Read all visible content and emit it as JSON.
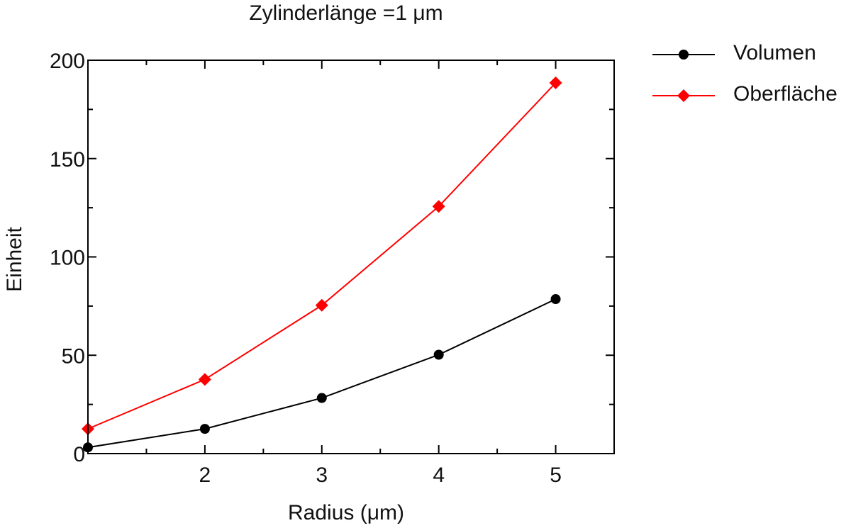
{
  "chart_data": {
    "type": "line",
    "title": "Zylinderlänge =1 μm",
    "xlabel": "Radius (μm)",
    "ylabel": "Einheit",
    "xlim": [
      1,
      5.5
    ],
    "ylim": [
      0,
      200
    ],
    "x_ticks": [
      2,
      3,
      4,
      5
    ],
    "y_ticks": [
      0,
      50,
      100,
      150,
      200
    ],
    "x_minor_ticks": [
      1.5,
      2.5,
      3.5,
      4.5
    ],
    "y_minor_ticks": [
      25,
      75,
      125,
      175
    ],
    "x": [
      1,
      2,
      3,
      4,
      5
    ],
    "series": [
      {
        "name": "Volumen",
        "values": [
          3.14,
          12.57,
          28.27,
          50.27,
          78.54
        ],
        "color": "#000000",
        "marker": "circle"
      },
      {
        "name": "Oberfläche",
        "values": [
          12.57,
          37.7,
          75.4,
          125.66,
          188.5
        ],
        "color": "#ff0000",
        "marker": "diamond"
      }
    ],
    "legend_position": "right-top",
    "grid": false
  }
}
